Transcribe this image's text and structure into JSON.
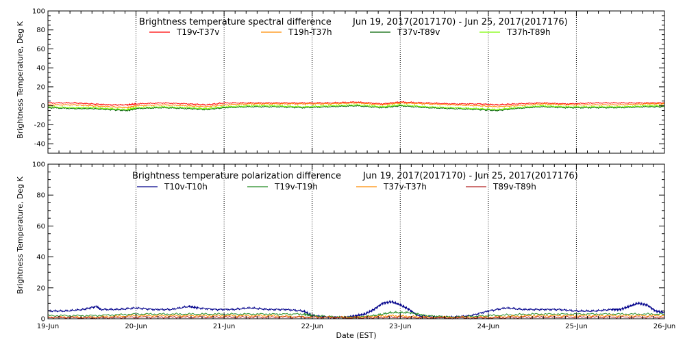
{
  "chart_data": [
    {
      "type": "line",
      "title": "Brightness temperature spectral difference",
      "date_range": "Jun 19, 2017(2017170) - Jun 25, 2017(2017176)",
      "ylabel": "Brightness Temperature, Deg K",
      "xlabel": "",
      "ylim": [
        -50,
        100
      ],
      "yticks": [
        "-40",
        "-20",
        "0",
        "20",
        "40",
        "60",
        "80",
        "100"
      ],
      "xlim": [
        0,
        7
      ],
      "grid": true,
      "legend_position": "top",
      "series": [
        {
          "name": "T19v-T37v",
          "color": "#ff0000",
          "x": [
            0,
            0.3,
            0.5,
            0.7,
            0.9,
            1.0,
            1.3,
            1.6,
            1.8,
            2.0,
            2.3,
            2.6,
            2.9,
            3.2,
            3.5,
            3.8,
            4.0,
            4.3,
            4.6,
            4.9,
            5.1,
            5.3,
            5.6,
            5.9,
            6.2,
            6.5,
            6.8,
            7.0
          ],
          "values": [
            3,
            3,
            2,
            1,
            1,
            2,
            3,
            2,
            1,
            3,
            3,
            3,
            3,
            3,
            4,
            2,
            4,
            3,
            2,
            2,
            1,
            2,
            3,
            2,
            3,
            3,
            3,
            3
          ]
        },
        {
          "name": "T19h-T37h",
          "color": "#ff8c00",
          "x": [
            0,
            0.3,
            0.5,
            0.7,
            0.9,
            1.0,
            1.3,
            1.6,
            1.8,
            2.0,
            2.3,
            2.6,
            2.9,
            3.2,
            3.5,
            3.8,
            4.0,
            4.3,
            4.6,
            4.9,
            5.1,
            5.3,
            5.6,
            5.9,
            6.2,
            6.5,
            6.8,
            7.0
          ],
          "values": [
            1,
            1,
            0,
            -1,
            -2,
            0,
            1,
            0,
            -1,
            1,
            2,
            2,
            2,
            2,
            3,
            1,
            3,
            2,
            1,
            0,
            -1,
            0,
            2,
            1,
            1,
            1,
            2,
            2
          ]
        },
        {
          "name": "T37v-T89v",
          "color": "#006400",
          "x": [
            0,
            0.3,
            0.5,
            0.7,
            0.9,
            1.0,
            1.3,
            1.6,
            1.8,
            2.0,
            2.3,
            2.6,
            2.9,
            3.2,
            3.5,
            3.8,
            4.0,
            4.3,
            4.6,
            4.9,
            5.1,
            5.3,
            5.6,
            5.9,
            6.2,
            6.5,
            6.8,
            7.0
          ],
          "values": [
            -2,
            -3,
            -3,
            -4,
            -5,
            -3,
            -2,
            -3,
            -4,
            -2,
            -1,
            -1,
            -2,
            -1,
            0,
            -2,
            0,
            -2,
            -3,
            -4,
            -5,
            -3,
            -1,
            -2,
            -2,
            -2,
            -1,
            -1
          ]
        },
        {
          "name": "T37h-T89h",
          "color": "#7cfc00",
          "x": [
            0,
            0.3,
            0.5,
            0.7,
            0.9,
            1.0,
            1.3,
            1.6,
            1.8,
            2.0,
            2.3,
            2.6,
            2.9,
            3.2,
            3.5,
            3.8,
            4.0,
            4.3,
            4.6,
            4.9,
            5.1,
            5.3,
            5.6,
            5.9,
            6.2,
            6.5,
            6.8,
            7.0
          ],
          "values": [
            -1,
            -2,
            -2,
            -3,
            -4,
            -2,
            -1,
            -2,
            -3,
            -1,
            0,
            0,
            -1,
            0,
            1,
            -1,
            1,
            -1,
            -2,
            -3,
            -4,
            -2,
            0,
            -1,
            -1,
            -1,
            0,
            0
          ]
        }
      ]
    },
    {
      "type": "line",
      "title": "Brightness temperature polarization difference",
      "date_range": "Jun 19, 2017(2017170) - Jun 25, 2017(2017176)",
      "ylabel": "Brightness Temperature, Deg K",
      "xlabel": "Date (EST)",
      "ylim": [
        0,
        100
      ],
      "yticks": [
        "0",
        "20",
        "40",
        "60",
        "80",
        "100"
      ],
      "xlim": [
        0,
        7
      ],
      "x_tick_labels": [
        "19-Jun",
        "20-Jun",
        "21-Jun",
        "22-Jun",
        "23-Jun",
        "24-Jun",
        "25-Jun",
        "26-Jun"
      ],
      "grid": true,
      "legend_position": "top",
      "series": [
        {
          "name": "T10v-T10h",
          "color": "#00008b",
          "x": [
            0,
            0.2,
            0.4,
            0.55,
            0.6,
            0.8,
            1.0,
            1.2,
            1.4,
            1.6,
            1.7,
            1.9,
            2.1,
            2.3,
            2.5,
            2.7,
            2.9,
            3.0,
            3.2,
            3.4,
            3.5,
            3.6,
            3.7,
            3.8,
            3.9,
            4.0,
            4.1,
            4.2,
            4.4,
            4.6,
            4.8,
            5.0,
            5.2,
            5.4,
            5.6,
            5.8,
            6.0,
            6.2,
            6.4,
            6.5,
            6.6,
            6.7,
            6.8,
            6.9,
            7.0
          ],
          "values": [
            5,
            5,
            6,
            8,
            6,
            6,
            7,
            6,
            6,
            8,
            7,
            6,
            6,
            7,
            6,
            6,
            5,
            2,
            1,
            1,
            2,
            3,
            6,
            10,
            11,
            9,
            6,
            2,
            1,
            1,
            2,
            5,
            7,
            6,
            6,
            6,
            5,
            5,
            6,
            6,
            8,
            10,
            9,
            5,
            4
          ]
        },
        {
          "name": "T19v-T19h",
          "color": "#228b22",
          "x": [
            0,
            0.5,
            1.0,
            1.5,
            2.0,
            2.5,
            2.9,
            3.0,
            3.3,
            3.5,
            3.7,
            3.9,
            4.1,
            4.3,
            4.6,
            5.0,
            5.5,
            6.0,
            6.5,
            7.0
          ],
          "values": [
            2,
            2,
            3,
            3,
            3,
            3,
            3,
            2,
            1,
            1,
            2,
            4,
            4,
            2,
            1,
            2,
            3,
            3,
            3,
            3
          ]
        },
        {
          "name": "T37v-T37h",
          "color": "#ff8c00",
          "x": [
            0,
            0.5,
            1.0,
            1.5,
            2.0,
            2.5,
            3.0,
            3.5,
            3.9,
            4.3,
            5.0,
            5.5,
            6.0,
            6.5,
            7.0
          ],
          "values": [
            1,
            1,
            2,
            2,
            2,
            2,
            1,
            1,
            2,
            1,
            1,
            2,
            2,
            2,
            2
          ]
        },
        {
          "name": "T89v-T89h",
          "color": "#b22222",
          "x": [
            0,
            0.5,
            1.0,
            1.5,
            2.0,
            2.5,
            3.0,
            3.5,
            3.9,
            4.3,
            5.0,
            5.5,
            6.0,
            6.5,
            7.0
          ],
          "values": [
            1,
            0.5,
            1,
            1,
            1,
            1,
            1,
            0.5,
            1,
            0.5,
            0.5,
            1,
            1,
            1,
            1
          ]
        }
      ]
    }
  ]
}
